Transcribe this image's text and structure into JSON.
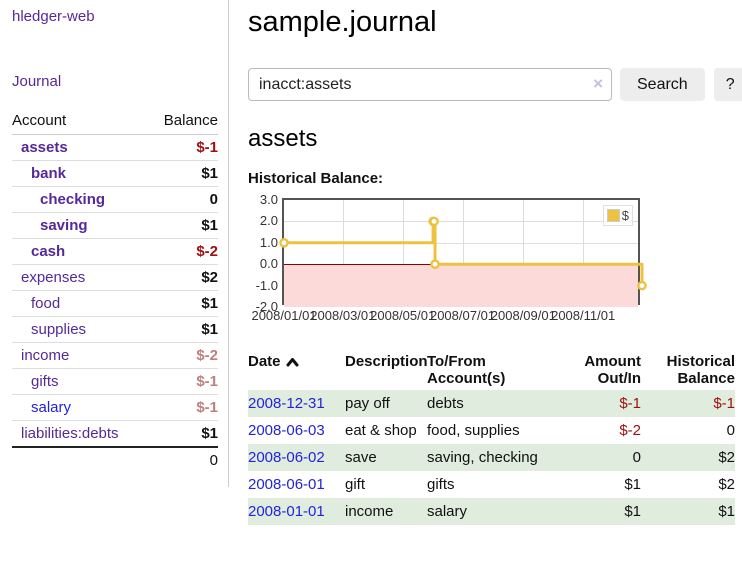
{
  "app": {
    "brand": "hledger-web",
    "nav_journal": "Journal"
  },
  "colors": {
    "link_purple": "#552a97",
    "link_blue": "#2323dd",
    "negative_dark": "#a01010",
    "negative_faded": "#c17e7e",
    "row_stripe_green": "#e0ecdd",
    "chart_line_yellow": "#EDC240",
    "chart_negative_pink": "#fcdada",
    "chart_zero_line": "#8b0000"
  },
  "sidebar": {
    "table": {
      "account_header": "Account",
      "balance_header": "Balance",
      "rows": [
        {
          "account": "assets",
          "balance": "$-1",
          "level": 1,
          "bold": true,
          "balance_style": "neg",
          "link_style": "purple"
        },
        {
          "account": "bank",
          "balance": "$1",
          "level": 2,
          "bold": true,
          "balance_style": "pos",
          "link_style": "purple"
        },
        {
          "account": "checking",
          "balance": "0",
          "level": 3,
          "bold": true,
          "balance_style": "pos",
          "link_style": "purple"
        },
        {
          "account": "saving",
          "balance": "$1",
          "level": 3,
          "bold": true,
          "balance_style": "pos",
          "link_style": "purple"
        },
        {
          "account": "cash",
          "balance": "$-2",
          "level": 2,
          "bold": true,
          "balance_style": "neg",
          "link_style": "purple"
        },
        {
          "account": "expenses",
          "balance": "$2",
          "level": 1,
          "bold": false,
          "balance_style": "pos",
          "link_style": "purple"
        },
        {
          "account": "food",
          "balance": "$1",
          "level": 2,
          "bold": false,
          "balance_style": "pos",
          "link_style": "purple"
        },
        {
          "account": "supplies",
          "balance": "$1",
          "level": 2,
          "bold": false,
          "balance_style": "pos",
          "link_style": "purple"
        },
        {
          "account": "income",
          "balance": "$-2",
          "level": 1,
          "bold": false,
          "balance_style": "negfaded",
          "link_style": "purple"
        },
        {
          "account": "gifts",
          "balance": "$-1",
          "level": 2,
          "bold": false,
          "balance_style": "negfaded",
          "link_style": "purple"
        },
        {
          "account": "salary",
          "balance": "$-1",
          "level": 2,
          "bold": false,
          "balance_style": "negfaded",
          "link_style": "blue"
        },
        {
          "account": "liabilities:debts",
          "balance": "$1",
          "level": 1,
          "bold": false,
          "balance_style": "pos",
          "link_style": "purple"
        }
      ],
      "total": "0"
    }
  },
  "header": {
    "title": "sample.journal"
  },
  "search": {
    "value": "inacct:assets",
    "clear_icon": "×",
    "button_label": "Search",
    "help_label": "?"
  },
  "account_page": {
    "heading": "assets",
    "chart_label": "Historical Balance:"
  },
  "chart_data": {
    "type": "line",
    "step": true,
    "title": "Historical Balance:",
    "x_range": [
      "2008-01-01",
      "2008-12-31"
    ],
    "ylim": [
      -2,
      3
    ],
    "y_ticks": [
      3,
      2,
      1,
      0,
      -1,
      -2
    ],
    "y_tick_labels": [
      "3.0",
      "2.0",
      "1.0",
      "0.0",
      "-1.0",
      "-2.0"
    ],
    "x_ticks": [
      "2008-01-01",
      "2008-03-01",
      "2008-05-01",
      "2008-07-01",
      "2008-09-01",
      "2008-11-01"
    ],
    "x_tick_labels": [
      "2008/01/01",
      "2008/03/01",
      "2008/05/01",
      "2008/07/01",
      "2008/09/01",
      "2008/11/01"
    ],
    "series": [
      {
        "name": "$",
        "color": "#EDC240",
        "points": [
          [
            "2008-01-01",
            1
          ],
          [
            "2008-06-01",
            2
          ],
          [
            "2008-06-02",
            2
          ],
          [
            "2008-06-03",
            0
          ],
          [
            "2008-12-31",
            -1
          ]
        ]
      }
    ],
    "grid": true,
    "legend_position": "top-right",
    "negative_region_fill": "#fcdada",
    "zero_line_color": "#8b0000"
  },
  "register": {
    "columns": [
      {
        "label": "Date",
        "sort": "ascending"
      },
      {
        "label": "Description"
      },
      {
        "label": "To/From Account(s)"
      },
      {
        "label": "Amount Out/In"
      },
      {
        "label": "Historical Balance"
      }
    ],
    "rows": [
      {
        "date": "2008-12-31",
        "description": "pay off",
        "accounts": "debts",
        "amount": "$-1",
        "amount_negative": true,
        "balance": "$-1",
        "balance_negative": true
      },
      {
        "date": "2008-06-03",
        "description": "eat & shop",
        "accounts": "food, supplies",
        "amount": "$-2",
        "amount_negative": true,
        "balance": "0",
        "balance_negative": false
      },
      {
        "date": "2008-06-02",
        "description": "save",
        "accounts": "saving, checking",
        "amount": "0",
        "amount_negative": false,
        "balance": "$2",
        "balance_negative": false
      },
      {
        "date": "2008-06-01",
        "description": "gift",
        "accounts": "gifts",
        "amount": "$1",
        "amount_negative": false,
        "balance": "$2",
        "balance_negative": false
      },
      {
        "date": "2008-01-01",
        "description": "income",
        "accounts": "salary",
        "amount": "$1",
        "amount_negative": false,
        "balance": "$1",
        "balance_negative": false
      }
    ]
  }
}
